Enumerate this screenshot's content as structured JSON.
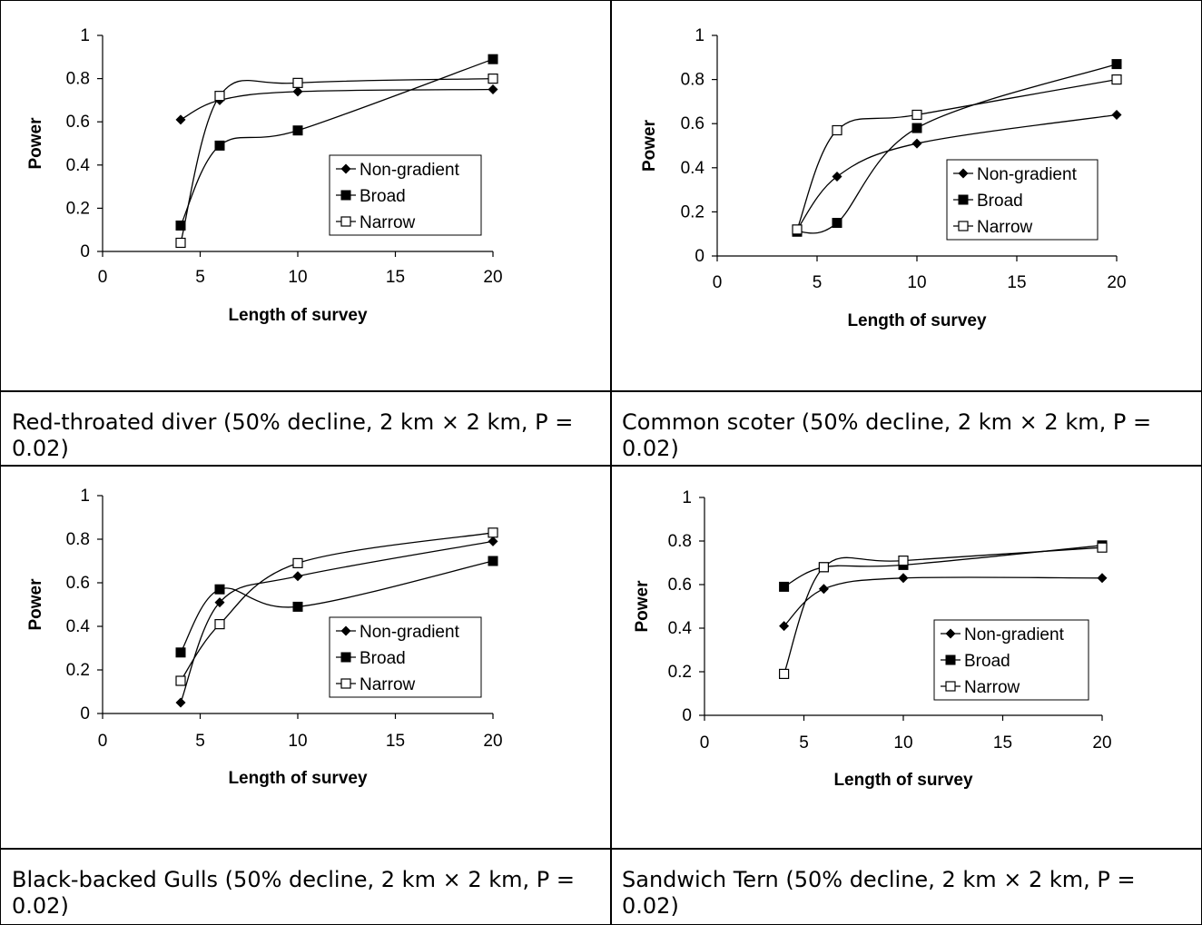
{
  "charts": [
    {
      "caption": "Red-throated diver (50% decline, 2 km × 2 km, P = 0.02)",
      "chart_data": {
        "type": "line",
        "x": [
          4,
          6,
          10,
          20
        ],
        "xlim": [
          0,
          20
        ],
        "ylim": [
          0,
          1
        ],
        "xticks": [
          "0",
          "5",
          "10",
          "15",
          "20"
        ],
        "yticks": [
          "0",
          "0.2",
          "0.4",
          "0.6",
          "0.8",
          "1"
        ],
        "xlabel": "Length of survey",
        "ylabel": "Power",
        "grid": false,
        "legend_position": "right",
        "series": [
          {
            "name": "Non-gradient",
            "marker": "diamond",
            "values": [
              0.61,
              0.7,
              0.74,
              0.75
            ]
          },
          {
            "name": "Broad",
            "marker": "square-filled",
            "values": [
              0.12,
              0.49,
              0.56,
              0.89
            ]
          },
          {
            "name": "Narrow",
            "marker": "square-open",
            "values": [
              0.04,
              0.72,
              0.78,
              0.8
            ]
          }
        ]
      }
    },
    {
      "caption": "Common scoter (50% decline, 2 km × 2 km, P = 0.02)",
      "chart_data": {
        "type": "line",
        "x": [
          4,
          6,
          10,
          20
        ],
        "xlim": [
          0,
          20
        ],
        "ylim": [
          0,
          1
        ],
        "xticks": [
          "0",
          "5",
          "10",
          "15",
          "20"
        ],
        "yticks": [
          "0",
          "0.2",
          "0.4",
          "0.6",
          "0.8",
          "1"
        ],
        "xlabel": "Length of survey",
        "ylabel": "Power",
        "grid": false,
        "legend_position": "right",
        "series": [
          {
            "name": "Non-gradient",
            "marker": "diamond",
            "values": [
              0.12,
              0.36,
              0.51,
              0.64
            ]
          },
          {
            "name": "Broad",
            "marker": "square-filled",
            "values": [
              0.11,
              0.15,
              0.58,
              0.87
            ]
          },
          {
            "name": "Narrow",
            "marker": "square-open",
            "values": [
              0.12,
              0.57,
              0.64,
              0.8
            ]
          }
        ]
      }
    },
    {
      "caption": "Black-backed Gulls (50% decline, 2 km × 2 km, P = 0.02)",
      "chart_data": {
        "type": "line",
        "x": [
          4,
          6,
          10,
          20
        ],
        "xlim": [
          0,
          20
        ],
        "ylim": [
          0,
          1
        ],
        "xticks": [
          "0",
          "5",
          "10",
          "15",
          "20"
        ],
        "yticks": [
          "0",
          "0.2",
          "0.4",
          "0.6",
          "0.8",
          "1"
        ],
        "xlabel": "Length of survey",
        "ylabel": "Power",
        "grid": false,
        "legend_position": "right",
        "series": [
          {
            "name": "Non-gradient",
            "marker": "diamond",
            "values": [
              0.05,
              0.51,
              0.63,
              0.79
            ]
          },
          {
            "name": "Broad",
            "marker": "square-filled",
            "values": [
              0.28,
              0.57,
              0.49,
              0.7
            ]
          },
          {
            "name": "Narrow",
            "marker": "square-open",
            "values": [
              0.15,
              0.41,
              0.69,
              0.83
            ]
          }
        ]
      }
    },
    {
      "caption": "Sandwich Tern (50% decline, 2 km × 2 km, P = 0.02)",
      "chart_data": {
        "type": "line",
        "x": [
          4,
          6,
          10,
          20
        ],
        "xlim": [
          0,
          20
        ],
        "ylim": [
          0,
          1
        ],
        "xticks": [
          "0",
          "5",
          "10",
          "15",
          "20"
        ],
        "yticks": [
          "0",
          "0.2",
          "0.4",
          "0.6",
          "0.8",
          "1"
        ],
        "xlabel": "Length of survey",
        "ylabel": "Power",
        "grid": false,
        "legend_position": "right",
        "series": [
          {
            "name": "Non-gradient",
            "marker": "diamond",
            "values": [
              0.41,
              0.58,
              0.63,
              0.63
            ]
          },
          {
            "name": "Broad",
            "marker": "square-filled",
            "values": [
              0.59,
              0.68,
              0.69,
              0.78
            ]
          },
          {
            "name": "Narrow",
            "marker": "square-open",
            "values": [
              0.19,
              0.68,
              0.71,
              0.77
            ]
          }
        ]
      }
    }
  ]
}
